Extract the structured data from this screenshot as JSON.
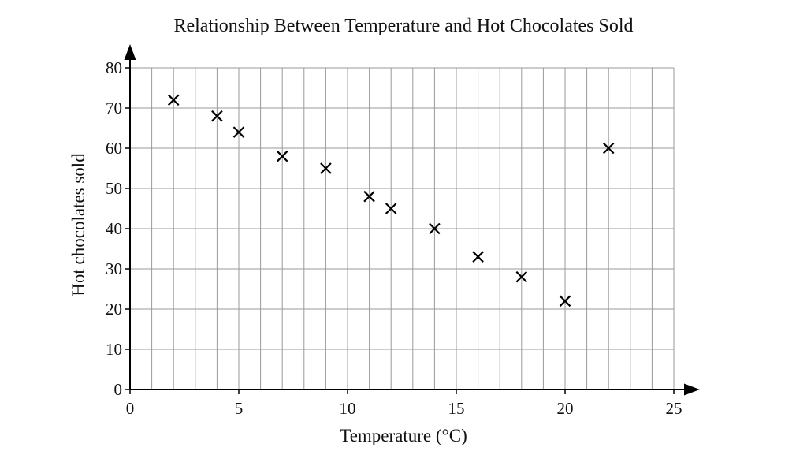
{
  "chart_data": {
    "type": "scatter",
    "title": "Relationship Between Temperature and Hot Chocolates Sold",
    "xlabel": "Temperature (°C)",
    "ylabel": "Hot chocolates sold",
    "xlim": [
      0,
      25
    ],
    "ylim": [
      0,
      80
    ],
    "xticks": [
      "0",
      "5",
      "10",
      "15",
      "20",
      "25"
    ],
    "yticks": [
      "0",
      "10",
      "20",
      "30",
      "40",
      "50",
      "60",
      "70",
      "80"
    ],
    "x_minor_step": 1,
    "y_minor_step": 10,
    "grid": true,
    "marker": "x",
    "colors": {
      "grid": "#9a9a9a",
      "axis": "#000000",
      "marker": "#000000"
    },
    "series": [
      {
        "points": [
          {
            "x": 2,
            "y": 72
          },
          {
            "x": 4,
            "y": 68
          },
          {
            "x": 5,
            "y": 64
          },
          {
            "x": 7,
            "y": 58
          },
          {
            "x": 9,
            "y": 55
          },
          {
            "x": 11,
            "y": 48
          },
          {
            "x": 12,
            "y": 45
          },
          {
            "x": 14,
            "y": 40
          },
          {
            "x": 16,
            "y": 33
          },
          {
            "x": 18,
            "y": 28
          },
          {
            "x": 20,
            "y": 22
          },
          {
            "x": 22,
            "y": 60
          }
        ]
      }
    ]
  }
}
